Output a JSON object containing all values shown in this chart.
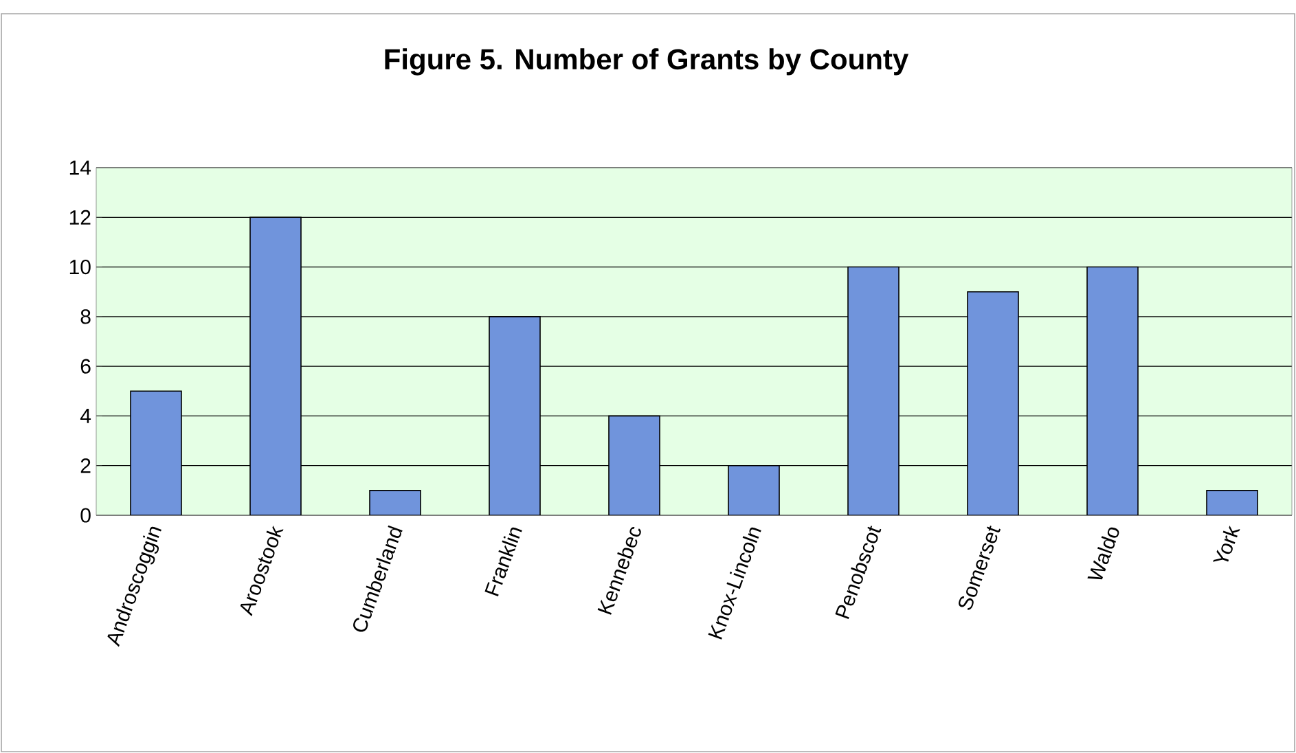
{
  "chart_data": {
    "type": "bar",
    "title": "Figure 5. Number of Grants by County",
    "categories": [
      "Androscoggin",
      "Aroostook",
      "Cumberland",
      "Franklin",
      "Kennebec",
      "Knox-Lincoln",
      "Penobscot",
      "Somerset",
      "Waldo",
      "York"
    ],
    "values": [
      5,
      12,
      1,
      8,
      4,
      2,
      10,
      9,
      10,
      1
    ],
    "color": "#7094dc",
    "ylim": [
      0,
      14
    ],
    "yticks": [
      0,
      2,
      4,
      6,
      8,
      10,
      12,
      14
    ],
    "grid": "y"
  }
}
